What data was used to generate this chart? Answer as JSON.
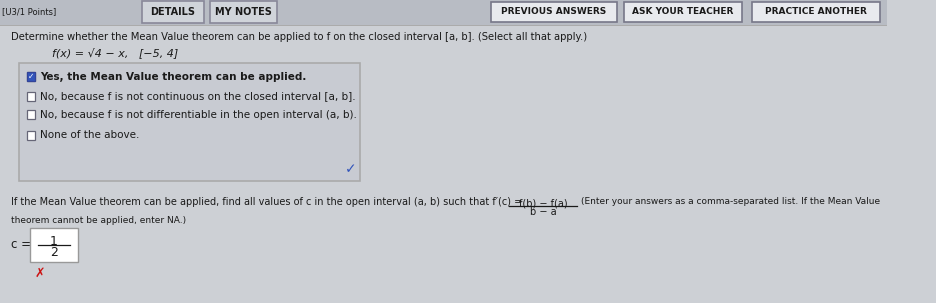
{
  "bg_color": "#cdd0d5",
  "top_bar_color": "#b8bcc4",
  "tab_color": "#d0d4da",
  "button_color": "#e8eaee",
  "checkbox_box_color": "#c8cbd2",
  "checkbox_box_border": "#aaaaaa",
  "white": "#ffffff",
  "title_text": "Determine whether the Mean Value theorem can be applied to f on the closed interval [a, b]. (Select all that apply.)",
  "function_text": "f(x) = √4 − x,   [−5, 4]",
  "checkbox_items": [
    {
      "checked": true,
      "text": "Yes, the Mean Value theorem can be applied."
    },
    {
      "checked": false,
      "text": "No, because f is not continuous on the closed interval [a, b]."
    },
    {
      "checked": false,
      "text": "No, because f is not differentiable in the open interval (a, b)."
    },
    {
      "checked": false,
      "text": "None of the above."
    }
  ],
  "mvt_label_text": "If the Mean Value theorem can be applied, find all values of c in the open interval (a, b) such that f′(c) =",
  "fraction_num": "f(b) − f(a)",
  "fraction_den": "b − a",
  "mvt_note": "(Enter your answers as a comma-separated list. If the Mean Value",
  "mvt_note2": "theorem cannot be applied, enter NA.)",
  "c_label": "c =",
  "c_value_num": "1",
  "c_value_den": "2",
  "top_buttons": [
    "PREVIOUS ANSWERS",
    "ASK YOUR TEACHER",
    "PRACTICE ANOTHER"
  ],
  "top_left_tabs": [
    "DETAILS",
    "MY NOTES"
  ],
  "checkmark_color": "#3355bb",
  "text_color": "#1a1a1a",
  "wrong_color": "#cc1111",
  "partial_left_text": "[U3/1 Points]"
}
